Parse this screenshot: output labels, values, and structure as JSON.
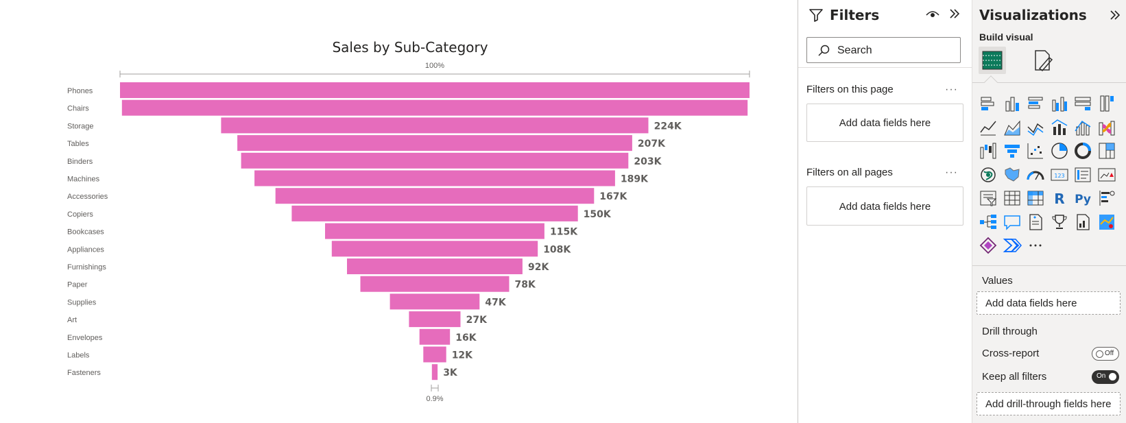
{
  "chart_data": {
    "type": "funnel",
    "title": "Sales by Sub-Category",
    "top_percent_label": "100%",
    "bottom_percent_label": "0.9%",
    "bar_color": "#e66cbc",
    "categories": [
      "Phones",
      "Chairs",
      "Storage",
      "Tables",
      "Binders",
      "Machines",
      "Accessories",
      "Copiers",
      "Bookcases",
      "Appliances",
      "Furnishings",
      "Paper",
      "Supplies",
      "Art",
      "Envelopes",
      "Labels",
      "Fasteners"
    ],
    "values": [
      330000,
      328000,
      224000,
      207000,
      203000,
      189000,
      167000,
      150000,
      115000,
      108000,
      92000,
      78000,
      47000,
      27000,
      16000,
      12000,
      3000
    ],
    "data_labels": [
      "",
      "",
      "224K",
      "207K",
      "203K",
      "189K",
      "167K",
      "150K",
      "115K",
      "108K",
      "92K",
      "78K",
      "47K",
      "27K",
      "16K",
      "12K",
      "3K"
    ]
  },
  "filters": {
    "title": "Filters",
    "search_placeholder": "Search",
    "on_this_page": "Filters on this page",
    "on_all_pages": "Filters on all pages",
    "add_fields_1": "Add data fields here",
    "add_fields_2": "Add data fields here",
    "more": "···",
    "icons": [
      "filter-icon",
      "eye-icon",
      "collapse-icon"
    ]
  },
  "visualizations": {
    "title": "Visualizations",
    "build_visual": "Build visual",
    "values_label": "Values",
    "values_drop": "Add data fields here",
    "drill_through": "Drill through",
    "cross_report": "Cross-report",
    "cross_report_state": "Off",
    "keep_all_filters": "Keep all filters",
    "keep_all_filters_state": "On",
    "drill_drop": "Add drill-through fields here",
    "more": "···",
    "gallery": [
      "stacked-bar",
      "stacked-column",
      "clustered-bar",
      "clustered-column",
      "100-stacked-bar",
      "100-stacked-column",
      "line",
      "area",
      "stacked-area",
      "line-stacked-column",
      "line-clustered-column",
      "ribbon",
      "waterfall",
      "funnel",
      "scatter",
      "pie",
      "donut",
      "treemap",
      "map",
      "filled-map",
      "gauge",
      "card",
      "multi-row-card",
      "kpi",
      "slicer",
      "table",
      "matrix",
      "r-visual",
      "python-visual",
      "key-influencers",
      "decomposition-tree",
      "qa",
      "smart-narrative",
      "goals",
      "paginated-report",
      "azure-map",
      "power-apps",
      "power-automate",
      "more-visuals"
    ],
    "accent_color": "#0c7a5b"
  }
}
